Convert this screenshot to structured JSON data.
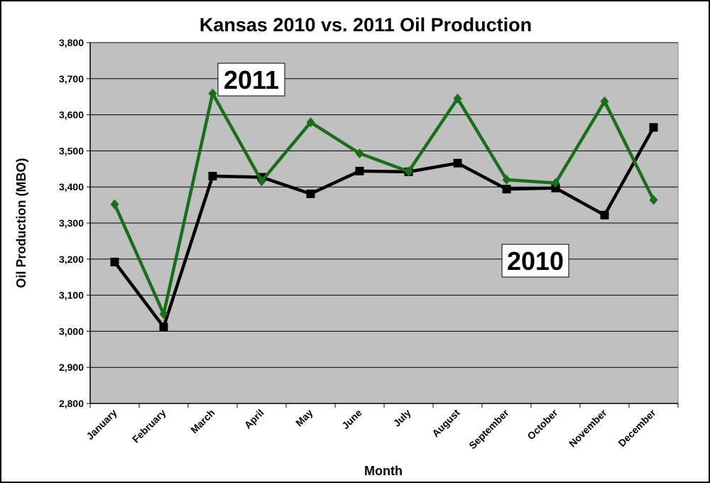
{
  "chart_data": {
    "type": "line",
    "title": "Kansas 2010 vs. 2011 Oil Production",
    "xlabel": "Month",
    "ylabel": "Oil Production (MBO)",
    "ylim": [
      2800,
      3800
    ],
    "ytick_step": 100,
    "yticks": [
      "2,800",
      "2,900",
      "3,000",
      "3,100",
      "3,200",
      "3,300",
      "3,400",
      "3,500",
      "3,600",
      "3,700",
      "3,800"
    ],
    "categories": [
      "January",
      "February",
      "March",
      "April",
      "May",
      "June",
      "July",
      "August",
      "September",
      "October",
      "November",
      "December"
    ],
    "grid": true,
    "plot_background": "#c0c0c0",
    "series": [
      {
        "name": "2010",
        "color": "#000000",
        "marker": "square",
        "values": [
          3192,
          3012,
          3430,
          3427,
          3381,
          3444,
          3442,
          3466,
          3394,
          3397,
          3322,
          3565
        ]
      },
      {
        "name": "2011",
        "color": "#1a6e1a",
        "marker": "diamond",
        "values": [
          3352,
          3048,
          3659,
          3416,
          3579,
          3493,
          3443,
          3645,
          3420,
          3411,
          3637,
          3364
        ]
      }
    ]
  }
}
